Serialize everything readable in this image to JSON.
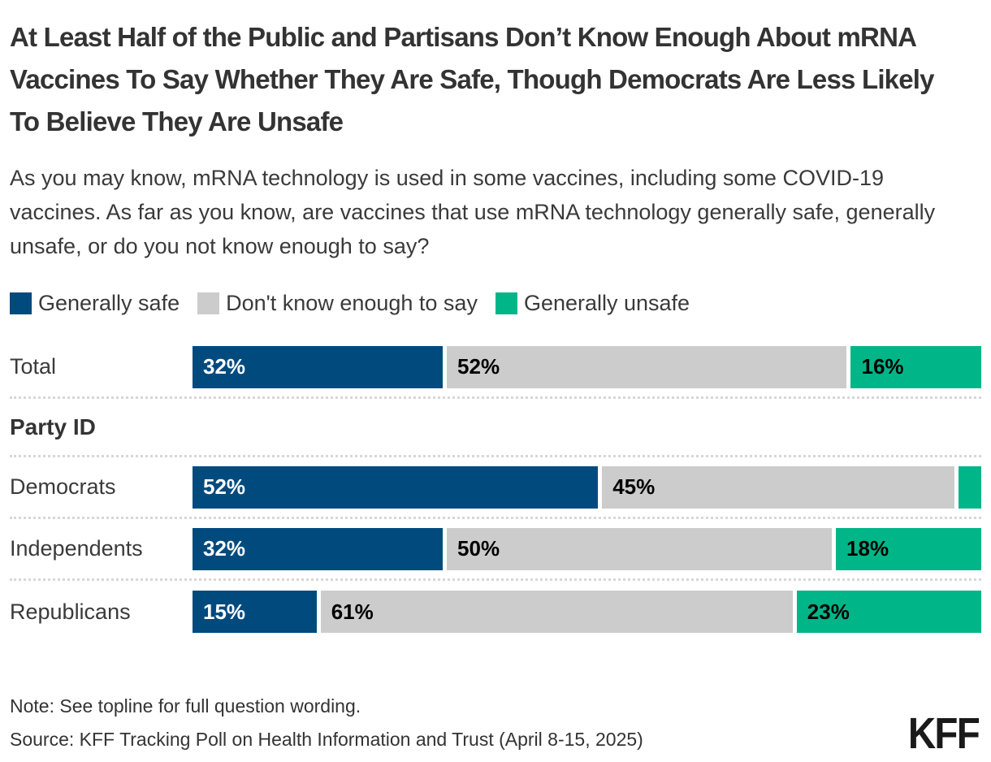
{
  "header": {
    "title": "At Least Half of the Public and Partisans Don’t Know Enough About mRNA Vaccines To Say Whether They Are Safe, Though Democrats Are Less Likely To Believe They Are Unsafe",
    "subtitle": "As you may know, mRNA technology is used in some vaccines, including some COVID-19 vaccines. As far as you know, are vaccines that use mRNA technology generally safe, generally unsafe, or do you not know enough to say?"
  },
  "chart_data": {
    "type": "bar",
    "orientation": "horizontal",
    "stacked": true,
    "unit": "percent",
    "xlim": [
      0,
      100
    ],
    "grid": false,
    "legend_position": "top",
    "legend": [
      {
        "name": "Generally safe",
        "color": "#004a7e",
        "text_color": "#ffffff"
      },
      {
        "name": "Don't know enough to say",
        "color": "#cccccc",
        "text_color": "#000000"
      },
      {
        "name": "Generally unsafe",
        "color": "#00b689",
        "text_color": "#000000"
      }
    ],
    "categories": [
      "Total",
      "Democrats",
      "Independents",
      "Republicans"
    ],
    "series": [
      {
        "name": "Generally safe",
        "values": [
          32,
          52,
          32,
          15
        ]
      },
      {
        "name": "Don't know enough to say",
        "values": [
          52,
          45,
          50,
          61
        ]
      },
      {
        "name": "Generally unsafe",
        "values": [
          16,
          3,
          18,
          23
        ]
      }
    ],
    "rows": [
      {
        "type": "bar",
        "label": "Total",
        "divider": true,
        "segments": [
          {
            "series": 0,
            "value": 32,
            "label": "32%"
          },
          {
            "series": 1,
            "value": 52,
            "label": "52%"
          },
          {
            "series": 2,
            "value": 16,
            "label": "16%"
          }
        ]
      },
      {
        "type": "section",
        "label": "Party ID",
        "divider": true
      },
      {
        "type": "bar",
        "label": "Democrats",
        "divider": true,
        "segments": [
          {
            "series": 0,
            "value": 52,
            "label": "52%"
          },
          {
            "series": 1,
            "value": 45,
            "label": "45%"
          },
          {
            "series": 2,
            "value": 3,
            "label": ""
          }
        ]
      },
      {
        "type": "bar",
        "label": "Independents",
        "divider": true,
        "segments": [
          {
            "series": 0,
            "value": 32,
            "label": "32%"
          },
          {
            "series": 1,
            "value": 50,
            "label": "50%"
          },
          {
            "series": 2,
            "value": 18,
            "label": "18%"
          }
        ]
      },
      {
        "type": "bar",
        "label": "Republicans",
        "divider": false,
        "segments": [
          {
            "series": 0,
            "value": 15,
            "label": "15%"
          },
          {
            "series": 1,
            "value": 61,
            "label": "61%"
          },
          {
            "series": 2,
            "value": 23,
            "label": "23%"
          }
        ]
      }
    ]
  },
  "footer": {
    "note": "Note: See topline for full question wording.",
    "source": "Source: KFF Tracking Poll on Health Information and Trust (April 8-15, 2025)",
    "logo": "KFF"
  }
}
